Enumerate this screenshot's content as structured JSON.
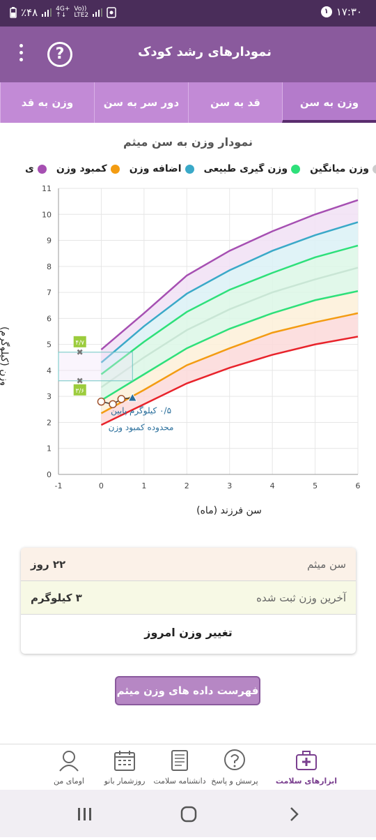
{
  "status": {
    "time": "۱۷:۳۰",
    "notif_count": "۱",
    "battery": "٪۴۸",
    "network_top": "4G+",
    "network_bottom": "LTE2",
    "volte_top": "Vo))",
    "volte_bottom": "LTE2"
  },
  "appbar": {
    "title": "نمودارهای رشد کودک",
    "help_label": "?"
  },
  "tabs": [
    {
      "label": "وزن به سن",
      "active": true
    },
    {
      "label": "قد به سن",
      "active": false
    },
    {
      "label": "دور سر به سن",
      "active": false
    },
    {
      "label": "وزن به قد",
      "active": false
    }
  ],
  "chart_title": "نمودار وزن به سن میثم",
  "legend": [
    {
      "label": "ی",
      "color": "#a64fb2"
    },
    {
      "label": "کمبود وزن",
      "color": "#f39c12"
    },
    {
      "label": "اضافه وزن",
      "color": "#3aa9c8"
    },
    {
      "label": "وزن گیری طبیعی",
      "color": "#2ee07a"
    },
    {
      "label": "وزن میانگین",
      "color": "#cccccc"
    }
  ],
  "chart_data": {
    "type": "line",
    "xlabel": "سن فرزند (ماه)",
    "ylabel": "وزن (کیلوگرم)",
    "xlim": [
      -1,
      6
    ],
    "ylim": [
      0,
      11
    ],
    "x_ticks": [
      "-1",
      "0",
      "1",
      "2",
      "3",
      "4",
      "5",
      "6"
    ],
    "y_ticks": [
      "0",
      "1",
      "2",
      "3",
      "4",
      "5",
      "6",
      "7",
      "8",
      "9",
      "10",
      "11"
    ],
    "grid": true,
    "x": [
      0,
      1,
      2,
      3,
      4,
      5,
      6
    ],
    "series": [
      {
        "name": "",
        "color": "#a64fb2",
        "fill": "#f1e1f4",
        "values": [
          4.8,
          6.2,
          7.65,
          8.6,
          9.35,
          10.0,
          10.55
        ]
      },
      {
        "name": "",
        "color": "#3aa9c8",
        "fill": "#dbf1f6",
        "values": [
          4.3,
          5.7,
          6.95,
          7.85,
          8.6,
          9.2,
          9.7
        ]
      },
      {
        "name": "",
        "color": "#2ee07a",
        "fill": "#dcf7e6",
        "values": [
          3.85,
          5.1,
          6.25,
          7.1,
          7.75,
          8.35,
          8.8
        ]
      },
      {
        "name": "",
        "color": "#c9e6d5",
        "fill": "#dcf7e6",
        "values": [
          3.35,
          4.5,
          5.55,
          6.35,
          7.0,
          7.5,
          7.95
        ]
      },
      {
        "name": "",
        "color": "#2ee07a",
        "fill": "#fdf0d8",
        "values": [
          2.85,
          3.85,
          4.85,
          5.6,
          6.2,
          6.7,
          7.05
        ]
      },
      {
        "name": "",
        "color": "#f39c12",
        "fill": "#fcd9d9",
        "values": [
          2.35,
          3.25,
          4.2,
          4.85,
          5.45,
          5.85,
          6.2
        ]
      },
      {
        "name": "",
        "color": "#e8232b",
        "fill": "#fcd9d9",
        "values": [
          1.9,
          2.7,
          3.5,
          4.1,
          4.6,
          5.0,
          5.3
        ]
      }
    ],
    "child_points": {
      "x": [
        0.0,
        0.27,
        0.47,
        0.73
      ],
      "y": [
        2.8,
        2.7,
        2.9,
        2.95
      ]
    },
    "range_box": {
      "x": [
        -1,
        0.73
      ],
      "y": [
        3.6,
        4.7
      ],
      "upper_label": "۴/۷",
      "lower_label": "۳/۶"
    },
    "annotation": [
      "۰/۵ کیلوگرم پایین",
      "محدوده کمبود وزن"
    ]
  },
  "info": {
    "age_label": "سن میثم",
    "age_value": "۲۲ روز",
    "weight_label": "آخرین وزن ثبت شده",
    "weight_value": "۳ کیلوگرم",
    "change_label": "تغییر وزن امروز"
  },
  "list_button": "فهرست داده های وزن میثم",
  "bottom_nav": [
    {
      "label": "ابزارهای سلامت",
      "icon": "health-kit-icon",
      "active": true
    },
    {
      "label": "پرسش و پاسخ",
      "icon": "question-bubble-icon",
      "active": false
    },
    {
      "label": "دانشنامه سلامت",
      "icon": "encyclopedia-icon",
      "active": false
    },
    {
      "label": "روزشمار بانو",
      "icon": "calendar-icon",
      "active": false
    },
    {
      "label": "اومای من",
      "icon": "profile-icon",
      "active": false
    }
  ]
}
